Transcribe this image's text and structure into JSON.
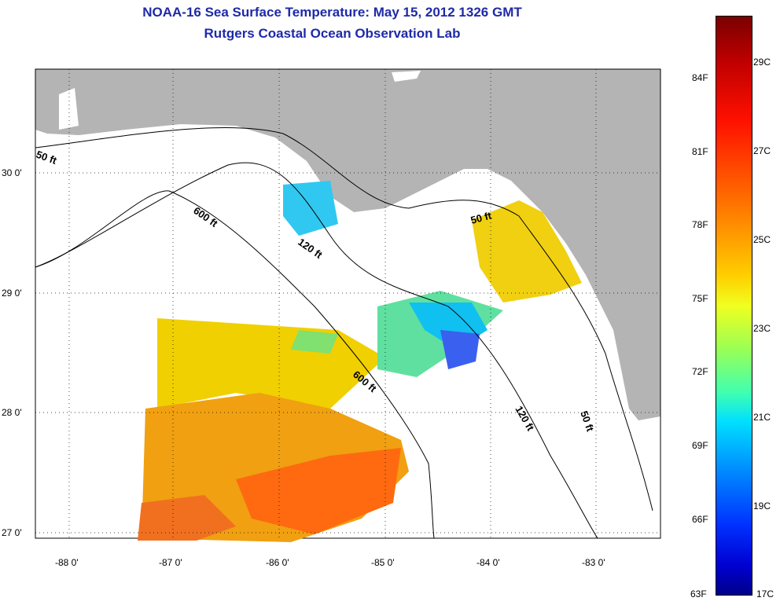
{
  "title": {
    "line1": "NOAA-16 Sea Surface Temperature:  May 15, 2012 1326 GMT",
    "line2": "Rutgers Coastal Ocean Observation Lab"
  },
  "map": {
    "lon_ticks": [
      "-88 0'",
      "-87 0'",
      "-86 0'",
      "-85 0'",
      "-84 0'",
      "-83 0'"
    ],
    "lat_ticks": [
      "30 0'",
      "29 0'",
      "28 0'",
      "27 0'"
    ],
    "contour_labels": [
      "50 ft",
      "600 ft",
      "120 ft",
      "50 ft",
      "600 ft",
      "120 ft",
      "50 ft"
    ]
  },
  "colorbar": {
    "fahrenheit": [
      "84F",
      "81F",
      "78F",
      "75F",
      "72F",
      "69F",
      "66F",
      "63F"
    ],
    "celsius": [
      "29C",
      "27C",
      "25C",
      "23C",
      "21C",
      "19C",
      "17C"
    ]
  },
  "colors": {
    "title": "#1e2aa8",
    "land": "#b4b4b4",
    "ocean": "#ffffff"
  }
}
